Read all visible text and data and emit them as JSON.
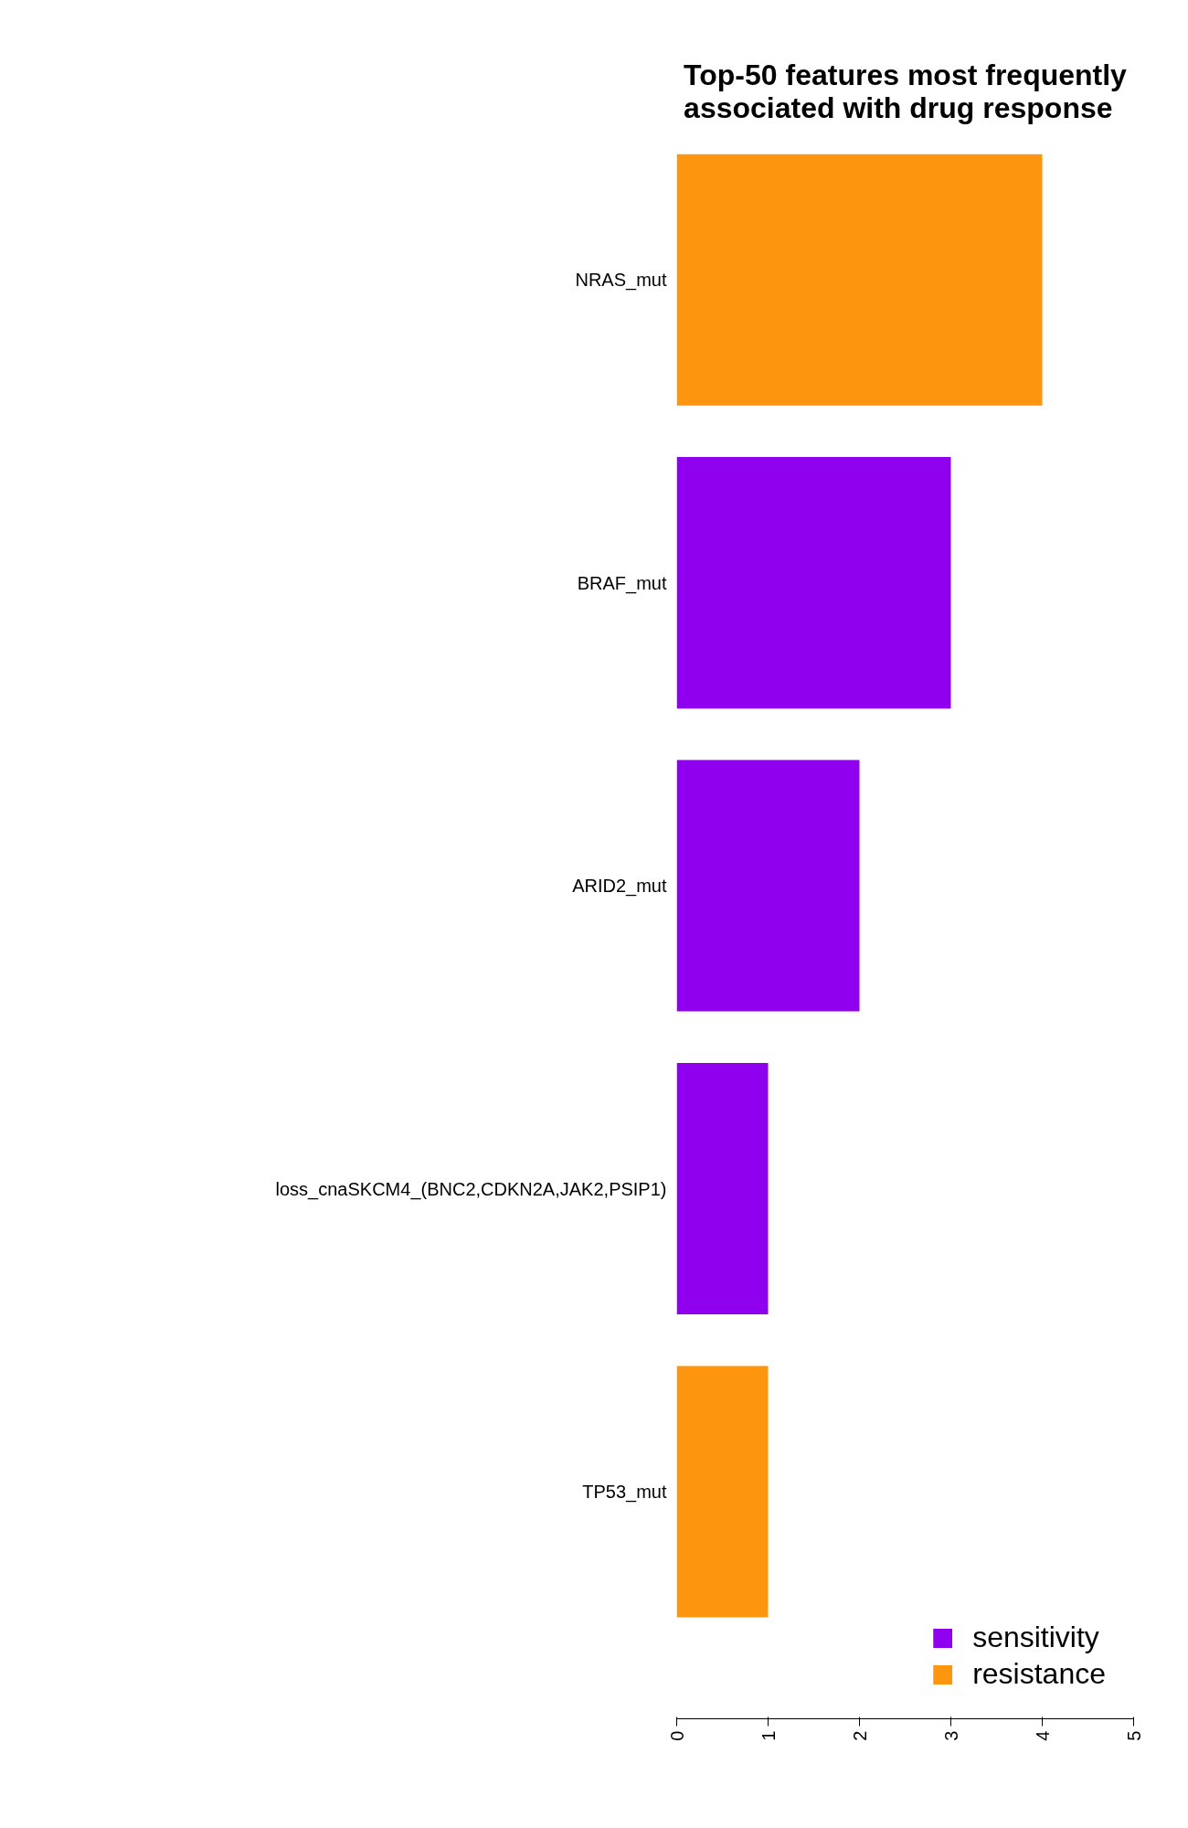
{
  "chart_data": {
    "type": "bar",
    "orientation": "horizontal",
    "title": "Top-50 features most frequently\nassociated with drug response",
    "categories": [
      "NRAS_mut",
      "BRAF_mut",
      "ARID2_mut",
      "loss_cnaSKCM4_(BNC2,CDKN2A,JAK2,PSIP1)",
      "TP53_mut"
    ],
    "series": [
      {
        "name": "sensitivity",
        "color": "#8f00ee",
        "values": [
          null,
          3,
          2,
          1,
          null
        ]
      },
      {
        "name": "resistance",
        "color": "#fd950f",
        "values": [
          4,
          null,
          null,
          null,
          1
        ]
      }
    ],
    "xlim": [
      0,
      5
    ],
    "xticks": [
      0,
      1,
      2,
      3,
      4,
      5
    ],
    "legend": "bottom right"
  }
}
